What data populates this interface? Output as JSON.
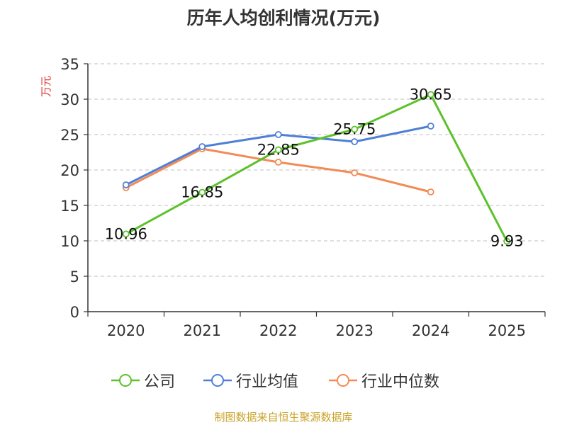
{
  "chart_data": {
    "type": "line",
    "title": "历年人均创利情况(万元)",
    "ylabel": "万元",
    "xlabel": "",
    "ylim": [
      0,
      35
    ],
    "yticks": [
      0,
      5,
      10,
      15,
      20,
      25,
      30,
      35
    ],
    "categories": [
      "2020",
      "2021",
      "2022",
      "2023",
      "2024",
      "2025"
    ],
    "grid": true,
    "legend_position": "bottom",
    "series": [
      {
        "name": "公司",
        "color": "#5cc12a",
        "values": [
          10.96,
          16.85,
          22.85,
          25.75,
          30.65,
          9.93
        ],
        "labels": [
          "10.96",
          "16.85",
          "22.85",
          "25.75",
          "30.65",
          "9.93"
        ]
      },
      {
        "name": "行业均值",
        "color": "#4f7fd6",
        "values": [
          17.9,
          23.3,
          25.0,
          24.0,
          26.2,
          null
        ]
      },
      {
        "name": "行业中位数",
        "color": "#f28b55",
        "values": [
          17.5,
          23.0,
          21.1,
          19.6,
          16.9,
          null
        ]
      }
    ]
  },
  "source": "制图数据来自恒生聚源数据库"
}
